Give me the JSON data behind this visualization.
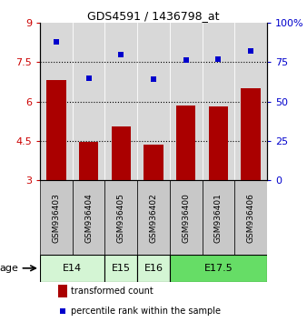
{
  "title": "GDS4591 / 1436798_at",
  "samples": [
    "GSM936403",
    "GSM936404",
    "GSM936405",
    "GSM936402",
    "GSM936400",
    "GSM936401",
    "GSM936406"
  ],
  "bar_values": [
    6.8,
    4.45,
    5.05,
    4.35,
    5.85,
    5.8,
    6.5
  ],
  "dot_values": [
    88,
    65,
    80,
    64,
    76,
    77,
    82
  ],
  "bar_color": "#aa0000",
  "dot_color": "#0000cc",
  "ylim_left": [
    3,
    9
  ],
  "ylim_right": [
    0,
    100
  ],
  "yticks_left": [
    3,
    4.5,
    6,
    7.5,
    9
  ],
  "yticks_right": [
    0,
    25,
    50,
    75,
    100
  ],
  "ytick_labels_left": [
    "3",
    "4.5",
    "6",
    "7.5",
    "9"
  ],
  "ytick_labels_right": [
    "0",
    "25",
    "50",
    "75",
    "100%"
  ],
  "hlines": [
    4.5,
    6.0,
    7.5
  ],
  "age_groups": [
    {
      "label": "E14",
      "spans": [
        0,
        1
      ],
      "color": "#d4f5d4"
    },
    {
      "label": "E15",
      "spans": [
        2
      ],
      "color": "#d4f5d4"
    },
    {
      "label": "E16",
      "spans": [
        3
      ],
      "color": "#d4f5d4"
    },
    {
      "label": "E17.5",
      "spans": [
        4,
        5,
        6
      ],
      "color": "#66dd66"
    }
  ],
  "legend_bar_label": "transformed count",
  "legend_dot_label": "percentile rank within the sample",
  "age_label": "age",
  "bar_width": 0.6,
  "plot_bg": "#d8d8d8",
  "sample_bg": "#c8c8c8",
  "left_tick_color": "#cc0000",
  "right_tick_color": "#0000cc"
}
